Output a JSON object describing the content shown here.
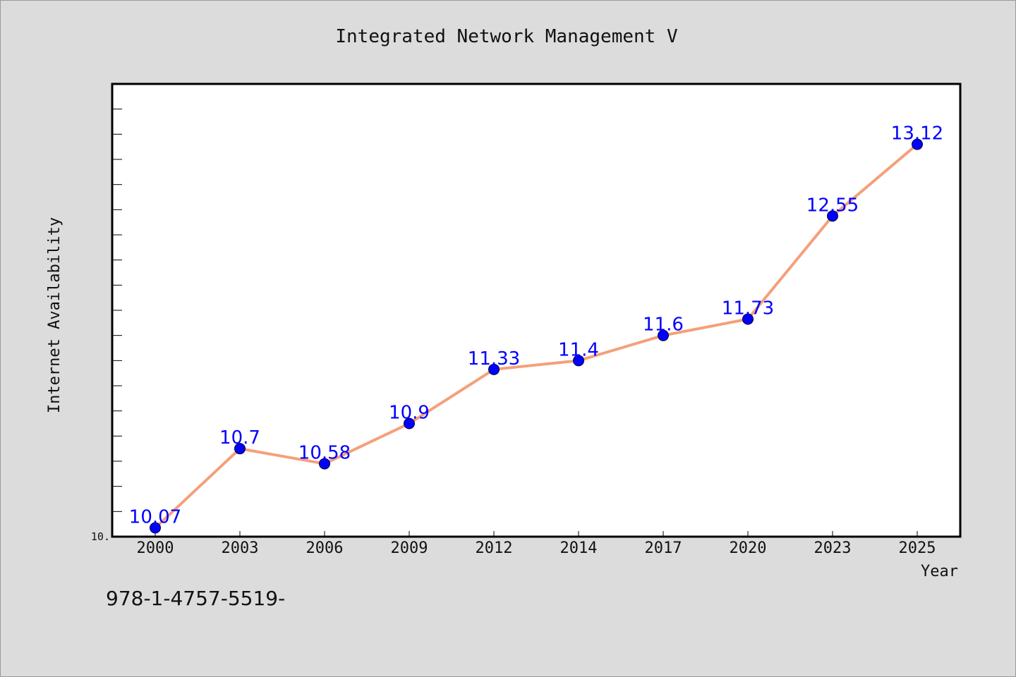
{
  "chart_data": {
    "type": "line",
    "title": "Integrated Network Management V",
    "xlabel": "Year",
    "ylabel": "Internet Availability",
    "categories": [
      "2000",
      "2003",
      "2006",
      "2009",
      "2012",
      "2014",
      "2017",
      "2020",
      "2023",
      "2025"
    ],
    "series": [
      {
        "values": [
          10.07,
          10.7,
          10.58,
          10.9,
          11.33,
          11.4,
          11.6,
          11.73,
          12.55,
          13.12
        ],
        "data_labels": [
          "10.07",
          "10.7",
          "10.58",
          "10.9",
          "11.33",
          "11.4",
          "11.6",
          "11.73",
          "12.55",
          "13.12"
        ],
        "line_color": "#f4a07a",
        "marker_color": "#0000ff"
      }
    ],
    "y_tick_labels": [
      {
        "value": 10.0,
        "label": "10."
      }
    ],
    "ylim": [
      10.0,
      13.6
    ],
    "grid": false,
    "legend": "none"
  },
  "footnote": "978-1-4757-5519-",
  "colors": {
    "background": "#dcdcdc",
    "plot_background": "#ffffff",
    "line": "#f4a07a",
    "marker": "#0000ff",
    "data_label": "#0000ff"
  }
}
